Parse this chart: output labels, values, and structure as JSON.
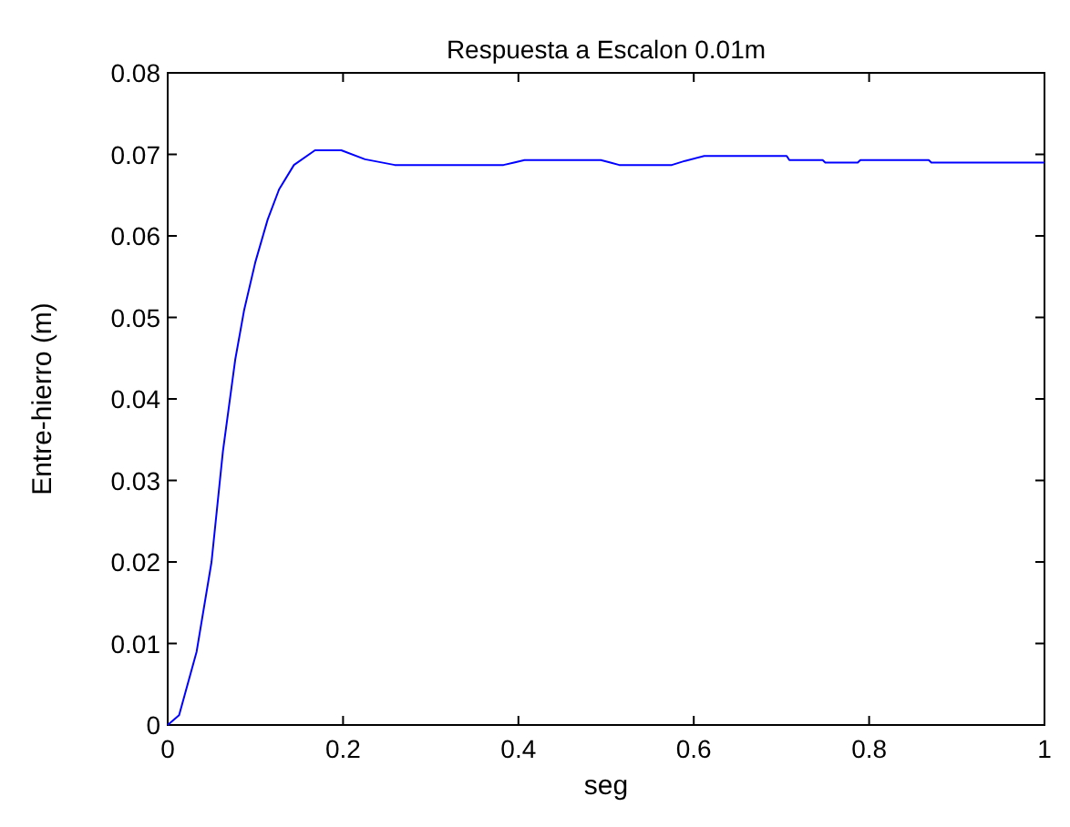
{
  "chart_data": {
    "type": "line",
    "title": "Respuesta a Escalon 0.01m",
    "xlabel": "seg",
    "ylabel": "Entre-hierro (m)",
    "x": [
      0,
      0.013,
      0.033,
      0.05,
      0.063,
      0.077,
      0.087,
      0.1,
      0.114,
      0.127,
      0.144,
      0.168,
      0.198,
      0.225,
      0.259,
      0.383,
      0.395,
      0.407,
      0.494,
      0.505,
      0.515,
      0.575,
      0.59,
      0.612,
      0.706,
      0.709,
      0.747,
      0.75,
      0.787,
      0.79,
      0.868,
      0.871,
      1.0
    ],
    "series": [
      {
        "color": "#0000ff",
        "values": [
          0,
          0.0012,
          0.009,
          0.02,
          0.0336,
          0.0448,
          0.0508,
          0.0568,
          0.062,
          0.0657,
          0.0687,
          0.0705,
          0.0705,
          0.0694,
          0.0687,
          0.0687,
          0.069,
          0.0693,
          0.0693,
          0.069,
          0.0687,
          0.0687,
          0.0692,
          0.0698,
          0.0698,
          0.0693,
          0.0693,
          0.069,
          0.069,
          0.0693,
          0.0693,
          0.069,
          0.069
        ]
      }
    ],
    "xlim": [
      0,
      1
    ],
    "ylim": [
      0,
      0.08
    ],
    "xticks": [
      0,
      0.2,
      0.4,
      0.6,
      0.8,
      1
    ],
    "yticks": [
      0,
      0.01,
      0.02,
      0.03,
      0.04,
      0.05,
      0.06,
      0.07,
      0.08
    ],
    "marker": "none"
  }
}
